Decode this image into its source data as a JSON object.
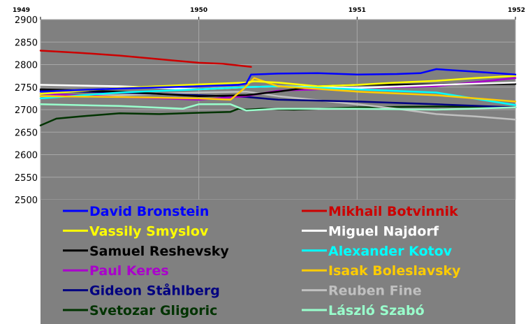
{
  "chart_data": {
    "type": "line",
    "title": "",
    "xlabel": "",
    "ylabel": "",
    "xlim": [
      1949,
      1952
    ],
    "ylim": [
      2500,
      2900
    ],
    "y_ticks": [
      "2500",
      "2550",
      "2600",
      "2650",
      "2700",
      "2750",
      "2800",
      "2850",
      "2900"
    ],
    "x_ticks": [
      "1949",
      "1950",
      "1951",
      "1952"
    ],
    "grid": true,
    "background": "#808080",
    "legend_position": "bottom",
    "series": [
      {
        "name": "David Bronstein",
        "color": "#0000ff",
        "x": [
          1949,
          1949.5,
          1950.0,
          1950.25,
          1950.3,
          1950.33,
          1950.5,
          1950.75,
          1951.0,
          1951.25,
          1951.4,
          1951.5,
          1951.75,
          1952.0
        ],
        "y": [
          2740,
          2747,
          2752,
          2755,
          2758,
          2778,
          2780,
          2781,
          2778,
          2779,
          2781,
          2790,
          2784,
          2778
        ]
      },
      {
        "name": "Mikhail Botvinnik",
        "color": "#cc0000",
        "x": [
          1949,
          1949.25,
          1949.5,
          1949.75,
          1950.0,
          1950.15,
          1950.33
        ],
        "y": [
          2831,
          2826,
          2820,
          2812,
          2804,
          2802,
          2795
        ]
      },
      {
        "name": "Vassily Smyslov",
        "color": "#ffff00",
        "x": [
          1949,
          1949.5,
          1950.0,
          1950.3,
          1950.35,
          1950.5,
          1950.75,
          1951.0,
          1951.25,
          1951.5,
          1951.75,
          1952.0
        ],
        "y": [
          2735,
          2748,
          2756,
          2760,
          2763,
          2760,
          2752,
          2755,
          2760,
          2764,
          2770,
          2775
        ]
      },
      {
        "name": "Miguel Najdorf",
        "color": "#ffffff",
        "x": [
          1949,
          1949.5,
          1950.0,
          1950.3,
          1950.5,
          1951.0,
          1951.5,
          1952.0
        ],
        "y": [
          2755,
          2752,
          2745,
          2750,
          2752,
          2748,
          2755,
          2760
        ]
      },
      {
        "name": "Samuel Reshevsky",
        "color": "#000000",
        "x": [
          1949,
          1949.5,
          1950.0,
          1950.3,
          1950.5,
          1950.75,
          1951.0,
          1951.5,
          1952.0
        ],
        "y": [
          2745,
          2740,
          2730,
          2732,
          2740,
          2752,
          2755,
          2756,
          2757
        ]
      },
      {
        "name": "Alexander Kotov",
        "color": "#00ffff",
        "x": [
          1949,
          1949.5,
          1950.0,
          1950.3,
          1950.5,
          1951.0,
          1951.5,
          1952.0
        ],
        "y": [
          2725,
          2738,
          2745,
          2750,
          2752,
          2745,
          2738,
          2710
        ]
      },
      {
        "name": "Paul Keres",
        "color": "#aa00cc",
        "x": [
          1949,
          1949.5,
          1950.0,
          1950.3,
          1950.5,
          1951.0,
          1951.5,
          1952.0
        ],
        "y": [
          2735,
          2728,
          2722,
          2730,
          2742,
          2748,
          2752,
          2770
        ]
      },
      {
        "name": "Isaak Boleslavsky",
        "color": "#ffcc00",
        "x": [
          1949,
          1949.5,
          1950.0,
          1950.2,
          1950.28,
          1950.35,
          1950.5,
          1951.0,
          1951.5,
          1952.0
        ],
        "y": [
          2730,
          2728,
          2725,
          2722,
          2745,
          2770,
          2752,
          2740,
          2732,
          2718
        ]
      },
      {
        "name": "Gideon Ståhlberg",
        "color": "#000080",
        "x": [
          1949,
          1949.5,
          1950.0,
          1950.3,
          1950.5,
          1951.0,
          1951.5,
          1952.0
        ],
        "y": [
          2742,
          2738,
          2732,
          2728,
          2722,
          2718,
          2712,
          2705
        ]
      },
      {
        "name": "Reuben Fine",
        "color": "#c0c0c0",
        "x": [
          1949,
          1949.5,
          1950.0,
          1950.3,
          1950.5,
          1951.0,
          1951.25,
          1951.5,
          1951.75,
          1952.0
        ],
        "y": [
          2730,
          2732,
          2738,
          2740,
          2730,
          2712,
          2702,
          2690,
          2685,
          2678
        ]
      },
      {
        "name": "Svetozar Gligoric",
        "color": "#003300",
        "x": [
          1949,
          1949.1,
          1949.25,
          1949.5,
          1949.75,
          1950.0,
          1950.2,
          1950.25,
          1950.3,
          1950.4,
          1950.6,
          1951.0,
          1951.5,
          1952.0
        ],
        "y": [
          2665,
          2680,
          2685,
          2692,
          2690,
          2693,
          2695,
          2702,
          2700,
          2702,
          2700,
          2705,
          2707,
          2705
        ]
      },
      {
        "name": "László Szabó",
        "color": "#99ffcc",
        "x": [
          1949,
          1949.5,
          1949.9,
          1950.0,
          1950.2,
          1950.25,
          1950.3,
          1950.5,
          1951.0,
          1951.5,
          1952.0
        ],
        "y": [
          2712,
          2708,
          2702,
          2712,
          2712,
          2705,
          2698,
          2702,
          2702,
          2700,
          2705
        ]
      }
    ]
  }
}
